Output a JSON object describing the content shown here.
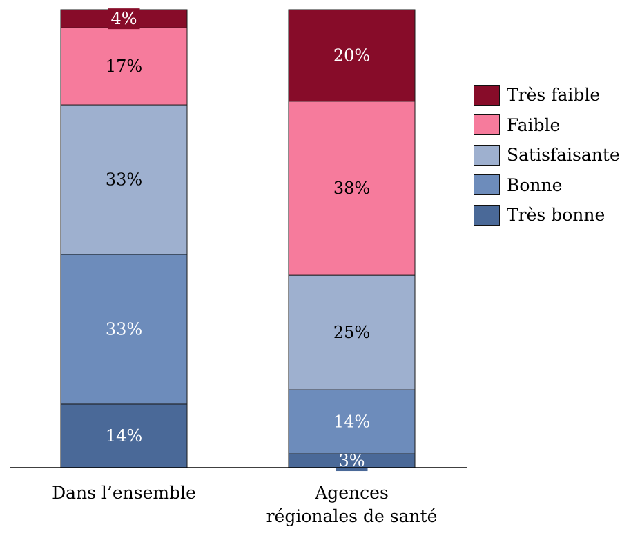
{
  "chart_data": {
    "type": "bar",
    "stacked": true,
    "normalized": true,
    "unit": "%",
    "categories": [
      "Dans l’ensemble",
      [
        "Agences",
        "régionales de santé"
      ]
    ],
    "series": [
      {
        "name": "Très bonne",
        "color": "#4a6998",
        "label_color": "#ffffff",
        "values": [
          14,
          3
        ]
      },
      {
        "name": "Bonne",
        "color": "#6d8cbb",
        "label_color": "#ffffff",
        "values": [
          33,
          14
        ]
      },
      {
        "name": "Satisfaisante",
        "color": "#9eb0cf",
        "label_color": "#000000",
        "values": [
          33,
          25
        ]
      },
      {
        "name": "Faible",
        "color": "#f67b9c",
        "label_color": "#000000",
        "values": [
          17,
          38
        ]
      },
      {
        "name": "Très faible",
        "color": "#870c29",
        "label_color": "#ffffff",
        "values": [
          4,
          20
        ]
      }
    ],
    "legend_order": [
      "Très faible",
      "Faible",
      "Satisfaisante",
      "Bonne",
      "Très bonne"
    ],
    "legend_position": "right",
    "grid": false,
    "ylim": [
      0,
      100
    ]
  }
}
